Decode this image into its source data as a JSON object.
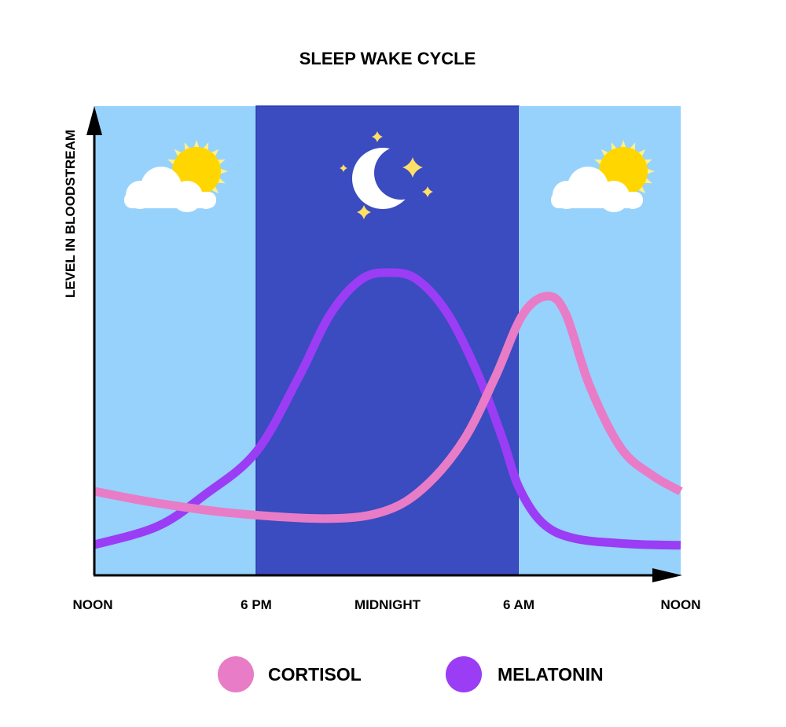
{
  "chart_data": {
    "type": "line",
    "title": "SLEEP WAKE CYCLE",
    "xlabel": "",
    "ylabel": "LEVEL IN BLOODSTREAM",
    "x_unit": "hours after noon",
    "xlim": [
      0,
      24
    ],
    "ylim": [
      0,
      100
    ],
    "x_ticks": [
      {
        "x": 0,
        "label": "NOON"
      },
      {
        "x": 6,
        "label": "6 PM"
      },
      {
        "x": 12,
        "label": "MIDNIGHT"
      },
      {
        "x": 18,
        "label": "6 AM"
      },
      {
        "x": 24,
        "label": "NOON"
      }
    ],
    "night_band": [
      6,
      18
    ],
    "grid": false,
    "legend_placement": "bottom",
    "colors": {
      "day": "#96d2fc",
      "night": "#3b4bc0",
      "cortisol": "#e87cc6",
      "melatonin": "#9a3df5",
      "sun": "#ffd600",
      "star": "#ffe066"
    },
    "icons": [
      "sun-behind-cloud-icon",
      "moon-with-stars-icon",
      "sun-behind-cloud-icon"
    ],
    "series": [
      {
        "name": "CORTISOL",
        "color": "#e87cc6",
        "x": [
          0,
          2.33,
          5.24,
          9.38,
          11.89,
          13.69,
          15.48,
          16.92,
          18.15,
          19.08,
          19.75,
          20.62,
          21.79,
          22.95,
          24
        ],
        "y": [
          17.9,
          15.4,
          13.2,
          12.1,
          13.7,
          18.8,
          28.8,
          42.2,
          55.6,
          59.5,
          55.6,
          40.5,
          27.1,
          21.3,
          17.9
        ]
      },
      {
        "name": "MELATONIN",
        "color": "#9a3df5",
        "x": [
          0,
          2.33,
          4.08,
          6,
          7.94,
          9.38,
          10.81,
          12.07,
          13.33,
          14.77,
          16.2,
          17.28,
          18,
          18.87,
          20.04,
          22.08,
          24
        ],
        "y": [
          6.5,
          10.4,
          17.1,
          26.3,
          42.2,
          55.6,
          63.1,
          64.5,
          63.1,
          55.6,
          42.2,
          28.8,
          18.8,
          11.2,
          7.9,
          6.7,
          6.4
        ]
      }
    ]
  }
}
